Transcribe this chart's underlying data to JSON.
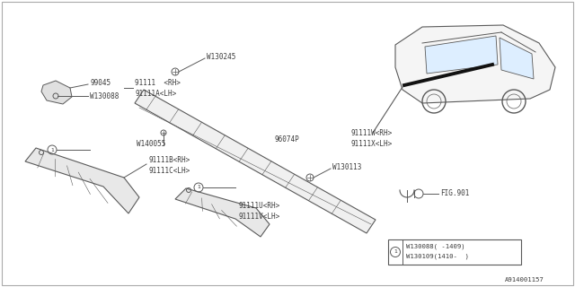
{
  "bg_color": "#ffffff",
  "line_color": "#5a5a5a",
  "text_color": "#3a3a3a",
  "diagram_id": "A914001157",
  "labels": {
    "w130245": "W130245",
    "96074p": "96074P",
    "w130113": "W130113",
    "99045": "99045",
    "w130088": "W130088",
    "91111_rh": "91111  <RH>",
    "91111a_lh": "91111A<LH>",
    "w140055": "W140055",
    "91111b_rh": "91111B<RH>",
    "91111c_lh": "91111C<LH>",
    "91111w_rh": "91111W<RH>",
    "91111x_lh": "91111X<LH>",
    "91111u_rh": "91111U<RH>",
    "91111v_lh": "91111V<LH>",
    "fig901": "FIG.901",
    "legend1": "W130088( -1409)",
    "legend2": "W130109(1410-  )"
  }
}
